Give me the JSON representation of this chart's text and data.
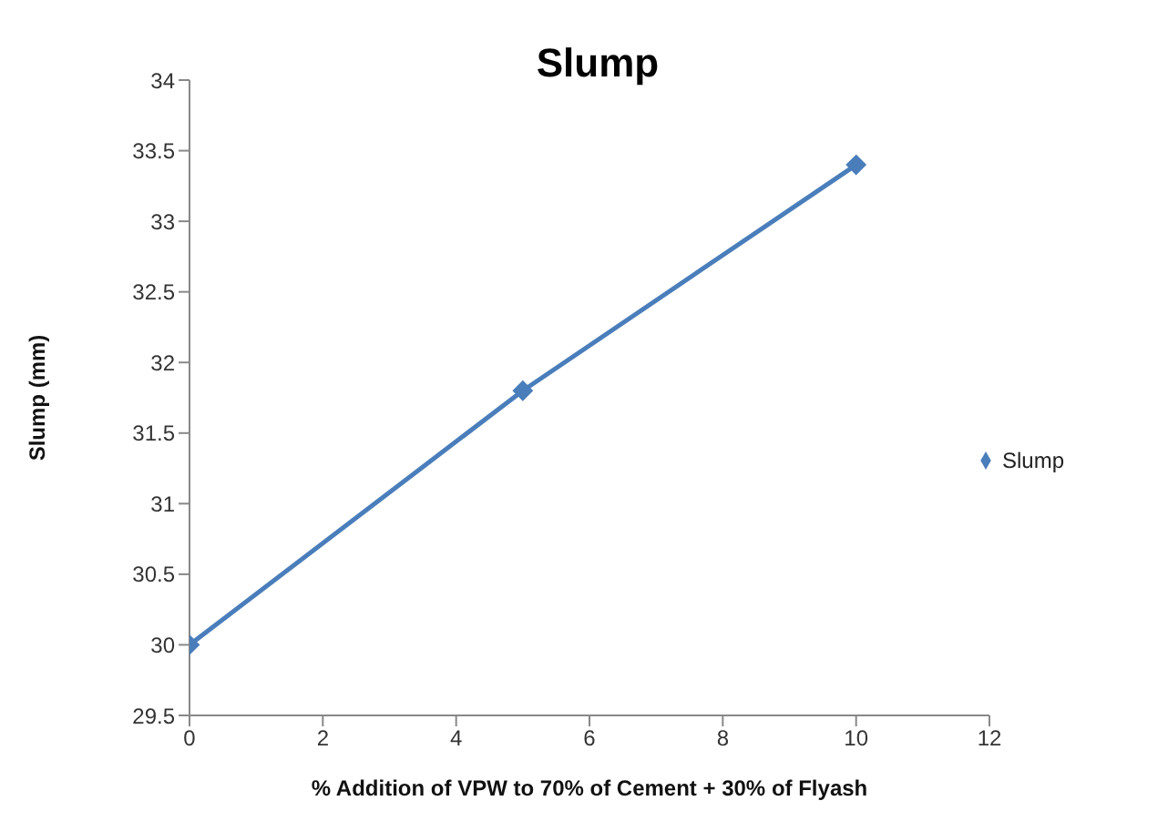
{
  "chart_data": {
    "type": "line",
    "title": "Slump",
    "xlabel": "% Addition of VPW to 70% of Cement + 30% of Flyash",
    "ylabel": "Slump (mm)",
    "x": [
      0,
      5,
      10
    ],
    "series": [
      {
        "name": "Slump",
        "color": "#4a7ebb",
        "values": [
          30,
          31.8,
          33.4
        ]
      }
    ],
    "xlim": [
      0,
      12
    ],
    "xticks": [
      0,
      2,
      4,
      6,
      8,
      10,
      12
    ],
    "ylim": [
      29.5,
      34
    ],
    "yticks": [
      29.5,
      30,
      30.5,
      31,
      31.5,
      32,
      32.5,
      33,
      33.5,
      34
    ],
    "grid": false,
    "legend": "right",
    "marker": "diamond",
    "line_style": "solid"
  }
}
